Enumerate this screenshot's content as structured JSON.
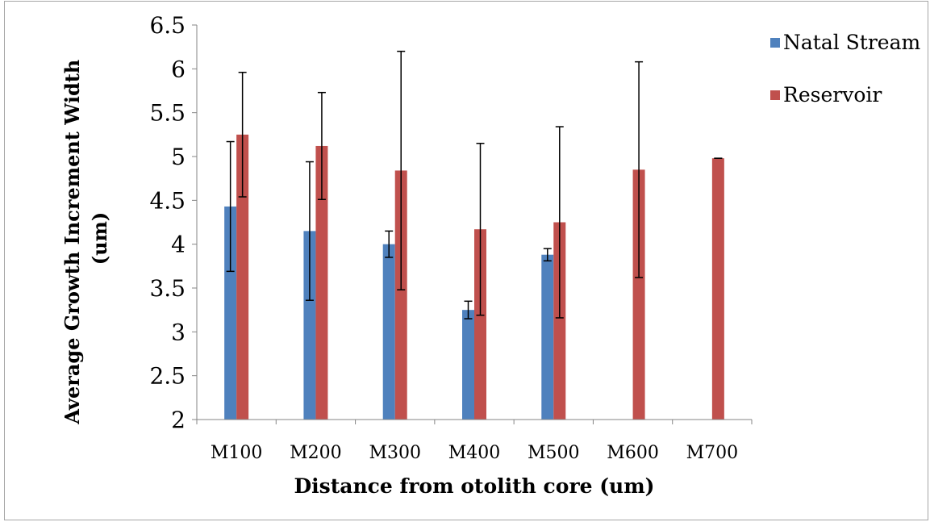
{
  "chart_data": {
    "type": "bar",
    "title": "",
    "xlabel": "Distance from otolith core (um)",
    "ylabel_line1": "Average Growth Increment Width",
    "ylabel_line2": "(um)",
    "ylim": [
      2,
      6.5
    ],
    "yticks": [
      "2",
      "2.5",
      "3",
      "3.5",
      "4",
      "4.5",
      "5",
      "5.5",
      "6",
      "6.5"
    ],
    "categories": [
      "M100",
      "M200",
      "M300",
      "M400",
      "M500",
      "M600",
      "M700"
    ],
    "legend_position": "top-right",
    "grid": false,
    "series": [
      {
        "name": "Natal Stream",
        "color": "#4f81bd",
        "values": [
          4.43,
          4.15,
          4.0,
          3.25,
          3.88,
          null,
          null
        ],
        "err": [
          0.74,
          0.79,
          0.15,
          0.1,
          0.07,
          null,
          null
        ]
      },
      {
        "name": "Reservoir",
        "color": "#c0504d",
        "values": [
          5.25,
          5.12,
          4.84,
          4.17,
          4.25,
          4.85,
          4.98
        ],
        "err": [
          0.71,
          0.61,
          1.36,
          0.98,
          1.09,
          1.23,
          0
        ]
      }
    ]
  }
}
